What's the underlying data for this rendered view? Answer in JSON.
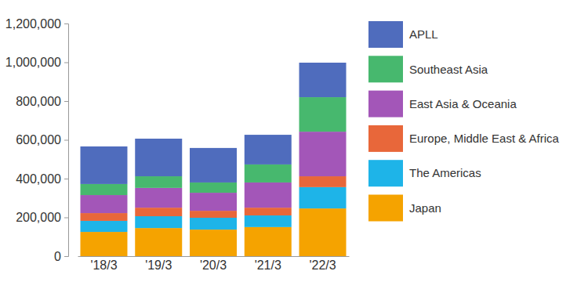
{
  "chart_data": {
    "type": "bar",
    "stacked": true,
    "grid": false,
    "legend": "right",
    "categories": [
      "'18/3",
      "'19/3",
      "'20/3",
      "'21/3",
      "'22/3"
    ],
    "ylim": [
      0,
      1200000
    ],
    "yticks": [
      0,
      {
        "value": 200000,
        "label": "200,000"
      },
      {
        "value": 400000,
        "label": "400,000"
      },
      {
        "value": 600000,
        "label": "600,000"
      },
      {
        "value": 800000,
        "label": "800,000"
      },
      {
        "value": 1000000,
        "label": "1,000,000"
      },
      {
        "value": 1200000,
        "label": "1,200,000"
      }
    ],
    "series": [
      {
        "name": "Japan",
        "color": "#f5a300",
        "values": [
          125000,
          145000,
          137000,
          150000,
          246000
        ]
      },
      {
        "name": "The Americas",
        "color": "#1eb4e8",
        "values": [
          57000,
          61000,
          61000,
          60000,
          110000
        ]
      },
      {
        "name": "Europe, Middle East & Africa",
        "color": "#e8673a",
        "values": [
          40000,
          44000,
          36000,
          40000,
          56000
        ]
      },
      {
        "name": "East Asia & Oceania",
        "color": "#a356b8",
        "values": [
          93000,
          102000,
          93000,
          130000,
          230000
        ]
      },
      {
        "name": "Southeast Asia",
        "color": "#47b86e",
        "values": [
          57000,
          60000,
          53000,
          93000,
          178000
        ]
      },
      {
        "name": "APLL",
        "color": "#4f6cbd",
        "values": [
          194000,
          194000,
          178000,
          153000,
          178000
        ]
      }
    ]
  }
}
